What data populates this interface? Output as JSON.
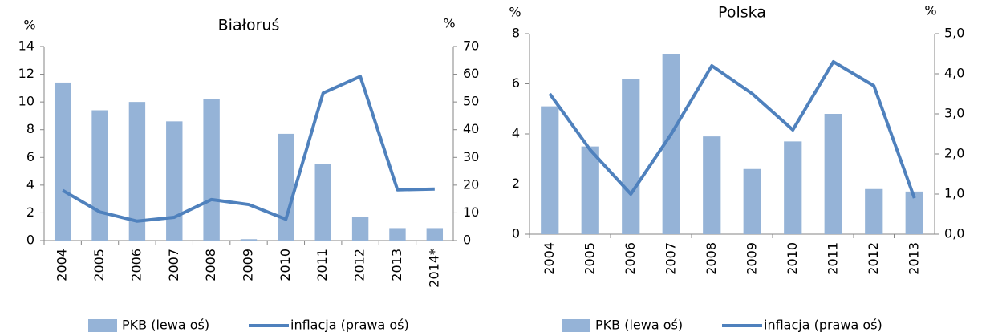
{
  "chart_data": [
    {
      "type": "combo",
      "title": "Białoruś",
      "y_label": "%",
      "y2_label": "%",
      "categories": [
        "2004",
        "2005",
        "2006",
        "2007",
        "2008",
        "2009",
        "2010",
        "2011",
        "2012",
        "2013",
        "2014*"
      ],
      "series": [
        {
          "name": "PKB (lewa oś)",
          "type": "bar",
          "color": "#95b3d7",
          "values": [
            11.4,
            9.4,
            10.0,
            8.6,
            10.2,
            0.1,
            7.7,
            5.5,
            1.7,
            0.9,
            0.9
          ]
        },
        {
          "name": "inflacja (prawa oś)",
          "type": "line",
          "axis": "y2",
          "color": "#4f81bd",
          "values": [
            18.1,
            10.3,
            7.0,
            8.4,
            14.8,
            13.0,
            7.7,
            53.2,
            59.2,
            18.3,
            18.6
          ]
        }
      ],
      "ylim": [
        0,
        14
      ],
      "yticks": [
        0,
        2,
        4,
        6,
        8,
        10,
        12,
        14
      ],
      "y2lim": [
        0,
        70
      ],
      "y2ticks": [
        0,
        10,
        20,
        30,
        40,
        50,
        60,
        70
      ]
    },
    {
      "type": "combo",
      "title": "Polska",
      "y_label": "%",
      "y2_label": "%",
      "categories": [
        "2004",
        "2005",
        "2006",
        "2007",
        "2008",
        "2009",
        "2010",
        "2011",
        "2012",
        "2013"
      ],
      "series": [
        {
          "name": "PKB (lewa oś)",
          "type": "bar",
          "color": "#95b3d7",
          "values": [
            5.1,
            3.5,
            6.2,
            7.2,
            3.9,
            2.6,
            3.7,
            4.8,
            1.8,
            1.7
          ]
        },
        {
          "name": "inflacja (prawa oś)",
          "type": "line",
          "axis": "y2",
          "color": "#4f81bd",
          "values": [
            3.5,
            2.1,
            1.0,
            2.5,
            4.2,
            3.5,
            2.6,
            4.3,
            3.7,
            0.9
          ]
        }
      ],
      "ylim": [
        0,
        8
      ],
      "yticks": [
        0,
        2,
        4,
        6,
        8
      ],
      "y2lim": [
        0,
        5
      ],
      "y2ticks": [
        {
          "value": 0,
          "label": "0,0"
        },
        {
          "value": 1,
          "label": "1,0"
        },
        {
          "value": 2,
          "label": "2,0"
        },
        {
          "value": 3,
          "label": "3,0"
        },
        {
          "value": 4,
          "label": "4,0"
        },
        {
          "value": 5,
          "label": "5,0"
        }
      ]
    }
  ]
}
